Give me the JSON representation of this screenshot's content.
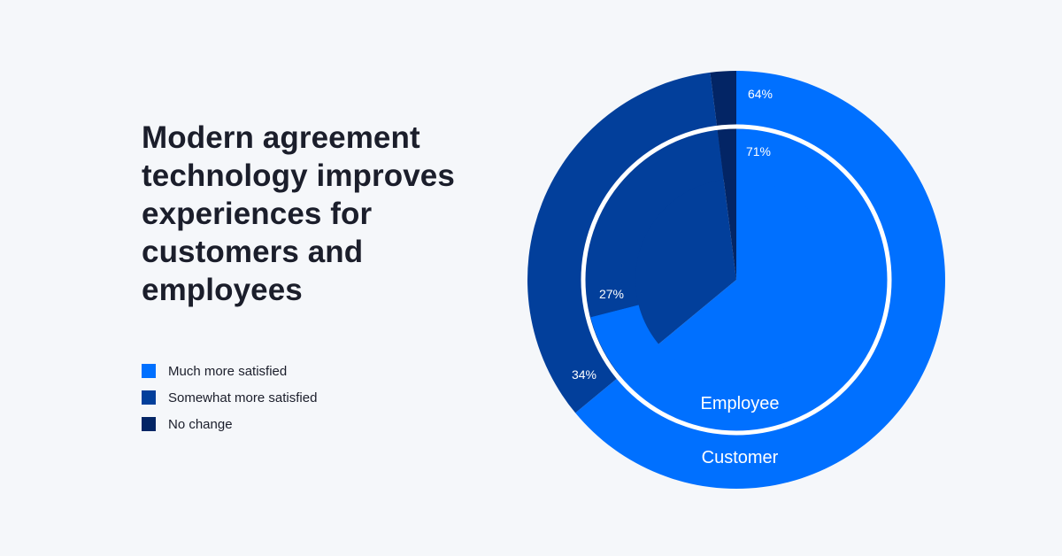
{
  "title": "Modern agreement technology improves experiences for customers and employees",
  "legend": [
    {
      "label": "Much more satisfied",
      "color": "#0070ff"
    },
    {
      "label": "Somewhat more satisfied",
      "color": "#023f9b"
    },
    {
      "label": "No change",
      "color": "#032565"
    }
  ],
  "chart_data": {
    "type": "pie",
    "variant": "nested-donut",
    "categories": [
      "Much more satisfied",
      "Somewhat more satisfied",
      "No change"
    ],
    "colors": [
      "#0070ff",
      "#023f9b",
      "#032565"
    ],
    "series": [
      {
        "name": "Customer",
        "ring": "outer",
        "values": [
          64,
          34,
          2
        ],
        "labels": [
          "64%",
          "34%",
          ""
        ]
      },
      {
        "name": "Employee",
        "ring": "inner",
        "values": [
          71,
          27,
          2
        ],
        "labels": [
          "71%",
          "27%",
          ""
        ]
      }
    ],
    "legend_position": "left"
  }
}
